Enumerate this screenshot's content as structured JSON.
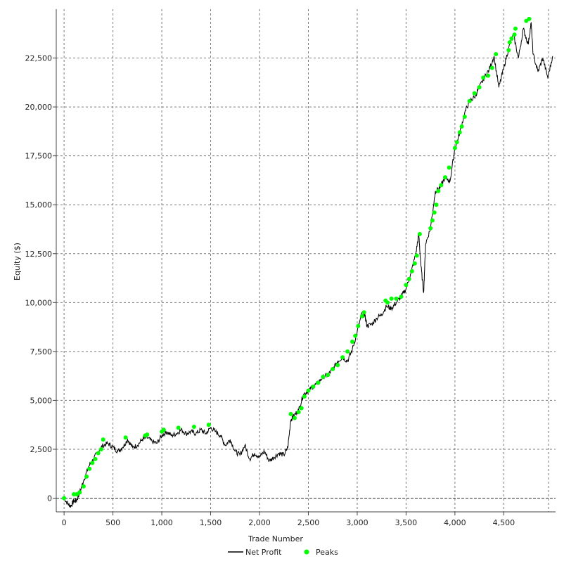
{
  "chart_data": {
    "type": "line",
    "xlabel": "Trade Number",
    "ylabel": "Equity ($)",
    "xlim": [
      -80,
      5030
    ],
    "ylim": [
      -700,
      25000
    ],
    "grid": true,
    "legend_position": "bottom-center",
    "x_ticks": [
      0,
      500,
      1000,
      1500,
      2000,
      2500,
      3000,
      3500,
      4000,
      4500
    ],
    "x_tick_labels": [
      "0",
      "500",
      "1,000",
      "1,500",
      "2,000",
      "2,500",
      "3,000",
      "3,500",
      "4,000",
      "4,500"
    ],
    "y_ticks": [
      0,
      2500,
      5000,
      7500,
      10000,
      12500,
      15000,
      17500,
      20000,
      22500
    ],
    "y_tick_labels": [
      "0",
      "2,500",
      "5,000",
      "7,500",
      "10,000",
      "12,500",
      "15,000",
      "17,500",
      "20,000",
      "22,500"
    ],
    "series": [
      {
        "name": "Net Profit",
        "kind": "line",
        "color": "#000000",
        "x": [
          0,
          40,
          70,
          100,
          130,
          160,
          200,
          250,
          300,
          350,
          400,
          450,
          500,
          550,
          600,
          650,
          700,
          750,
          800,
          850,
          900,
          950,
          1000,
          1050,
          1100,
          1150,
          1200,
          1250,
          1300,
          1350,
          1400,
          1450,
          1500,
          1550,
          1600,
          1650,
          1700,
          1750,
          1800,
          1850,
          1900,
          1950,
          2000,
          2050,
          2100,
          2150,
          2200,
          2250,
          2290,
          2320,
          2350,
          2400,
          2450,
          2500,
          2550,
          2600,
          2650,
          2700,
          2750,
          2800,
          2850,
          2900,
          2950,
          3000,
          3050,
          3080,
          3100,
          3150,
          3200,
          3250,
          3300,
          3350,
          3400,
          3450,
          3500,
          3550,
          3600,
          3630,
          3650,
          3680,
          3700,
          3750,
          3800,
          3850,
          3900,
          3950,
          4000,
          4050,
          4100,
          4150,
          4200,
          4250,
          4300,
          4350,
          4400,
          4450,
          4500,
          4550,
          4600,
          4650,
          4700,
          4750,
          4780,
          4800,
          4850,
          4900,
          4950,
          5000
        ],
        "y": [
          0,
          -300,
          -400,
          -150,
          -100,
          300,
          900,
          1600,
          2000,
          2400,
          2700,
          2800,
          2600,
          2400,
          2600,
          3000,
          2600,
          2700,
          3000,
          3100,
          2900,
          2800,
          3200,
          3400,
          3200,
          3300,
          3500,
          3300,
          3400,
          3300,
          3500,
          3300,
          3600,
          3400,
          3200,
          2700,
          3000,
          2400,
          2200,
          2700,
          2000,
          2300,
          2100,
          2400,
          1900,
          2100,
          2300,
          2200,
          2600,
          4000,
          4200,
          4500,
          5300,
          5500,
          5700,
          5900,
          6200,
          6300,
          6600,
          7000,
          7200,
          7000,
          7600,
          8500,
          9500,
          9300,
          8800,
          8900,
          9200,
          9400,
          9800,
          9700,
          10000,
          10300,
          10700,
          11500,
          12500,
          13500,
          12000,
          10500,
          13000,
          13800,
          15700,
          15900,
          16400,
          16200,
          17900,
          18700,
          19700,
          20300,
          20500,
          21000,
          21500,
          21900,
          22600,
          21000,
          22000,
          23000,
          23700,
          22500,
          24000,
          23200,
          24300,
          22700,
          21800,
          22500,
          21500,
          22600
        ]
      },
      {
        "name": "Peaks",
        "kind": "scatter",
        "color": "#00ff00",
        "x": [
          0,
          100,
          130,
          160,
          200,
          230,
          260,
          290,
          320,
          350,
          380,
          400,
          630,
          830,
          850,
          1000,
          1020,
          1170,
          1330,
          1480,
          2320,
          2360,
          2400,
          2430,
          2460,
          2500,
          2550,
          2600,
          2650,
          2700,
          2750,
          2800,
          2850,
          2900,
          2950,
          2980,
          3010,
          3050,
          3070,
          3290,
          3310,
          3350,
          3400,
          3450,
          3500,
          3530,
          3560,
          3590,
          3610,
          3640,
          3750,
          3770,
          3790,
          3810,
          3830,
          3860,
          3900,
          3940,
          4000,
          4020,
          4050,
          4070,
          4100,
          4150,
          4200,
          4250,
          4290,
          4340,
          4380,
          4420,
          4550,
          4560,
          4580,
          4610,
          4620,
          4730,
          4760
        ],
        "y": [
          0,
          200,
          200,
          300,
          600,
          1100,
          1500,
          1800,
          2000,
          2300,
          2500,
          3000,
          3100,
          3200,
          3250,
          3400,
          3500,
          3600,
          3650,
          3750,
          4300,
          4100,
          4400,
          4600,
          5200,
          5500,
          5700,
          5900,
          6200,
          6300,
          6600,
          6800,
          7200,
          7500,
          8000,
          8300,
          8800,
          9300,
          9500,
          10100,
          10000,
          10200,
          10200,
          10300,
          10900,
          11200,
          11600,
          12000,
          12400,
          13500,
          13800,
          14200,
          14600,
          15000,
          15700,
          16000,
          16400,
          16900,
          17900,
          18200,
          18700,
          19000,
          19500,
          20300,
          20700,
          21000,
          21500,
          21600,
          22000,
          22700,
          22900,
          23300,
          23500,
          23700,
          24000,
          24400,
          24500
        ]
      }
    ]
  },
  "legend": {
    "items": [
      {
        "label": "Net Profit",
        "color": "#000000",
        "marker": "line"
      },
      {
        "label": "Peaks",
        "color": "#00ff00",
        "marker": "dot"
      }
    ]
  }
}
